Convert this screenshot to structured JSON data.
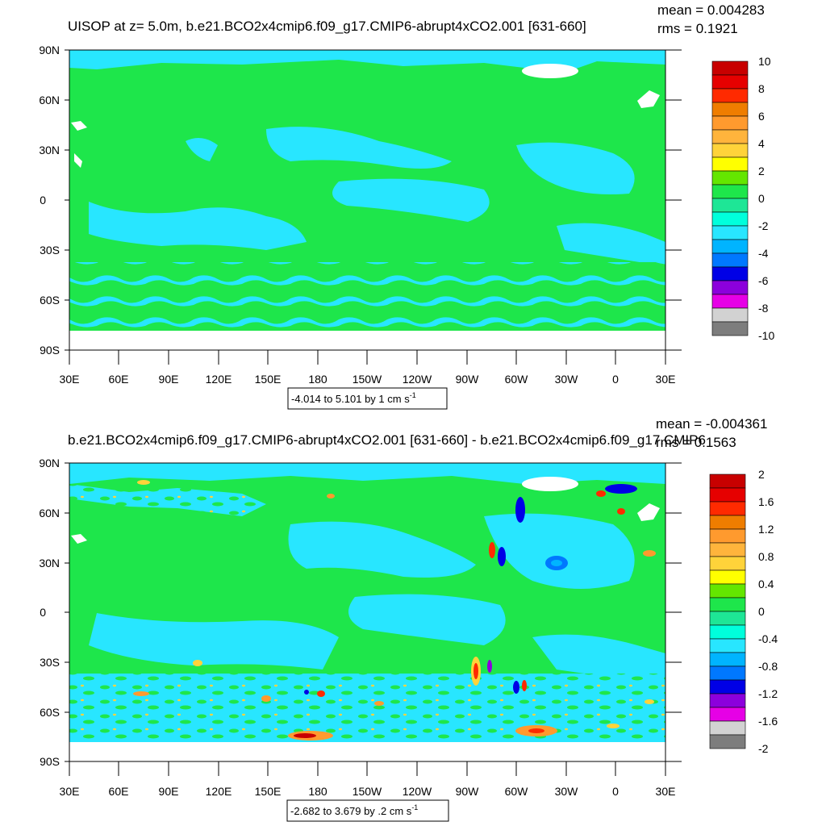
{
  "panels": [
    {
      "title": "UISOP at z=   5.0m, b.e21.BCO2x4cmip6.f09_g17.CMIP6-abrupt4xCO2.001 [631-660]",
      "mean_text": "mean = 0.004283",
      "rms_text": "rms = 0.1921",
      "range_text": "-4.014 to 5.101 by 1 cm s",
      "range_sup": "-1",
      "lat_labels": [
        "90N",
        "60N",
        "30N",
        "0",
        "30S",
        "60S",
        "90S"
      ],
      "lon_labels": [
        "30E",
        "60E",
        "90E",
        "120E",
        "150E",
        "180",
        "150W",
        "120W",
        "90W",
        "60W",
        "30W",
        "0",
        "30E"
      ],
      "colorbar_labels": [
        "10",
        "8",
        "6",
        "4",
        "2",
        "0",
        "-2",
        "-4",
        "-6",
        "-8",
        "-10"
      ]
    },
    {
      "title": "b.e21.BCO2x4cmip6.f09_g17.CMIP6-abrupt4xCO2.001 [631-660] - b.e21.BCO2x4cmip6.f09_g17.CMIP6",
      "mean_text": "mean = -0.004361",
      "rms_text": "rms = 0.1563",
      "range_text": "-2.682 to 3.679 by .2 cm s",
      "range_sup": "-1",
      "lat_labels": [
        "90N",
        "60N",
        "30N",
        "0",
        "30S",
        "60S",
        "90S"
      ],
      "lon_labels": [
        "30E",
        "60E",
        "90E",
        "120E",
        "150E",
        "180",
        "150W",
        "120W",
        "90W",
        "60W",
        "30W",
        "0",
        "30E"
      ],
      "colorbar_labels": [
        "2",
        "1.6",
        "1.2",
        "0.8",
        "0.4",
        "0",
        "-0.4",
        "-0.8",
        "-1.2",
        "-1.6",
        "-2"
      ]
    }
  ],
  "colorbar_colors": [
    "#c80000",
    "#e60000",
    "#ff2a00",
    "#ef7d00",
    "#ff9a2e",
    "#ffb43c",
    "#ffd33a",
    "#ffff00",
    "#64e600",
    "#1ee64b",
    "#1ee696",
    "#00ffdc",
    "#28e6ff",
    "#00b4ff",
    "#0078ff",
    "#0000e6",
    "#8c00dc",
    "#e600e6",
    "#d2d2d2",
    "#7d7d7d"
  ],
  "map_colors": {
    "zero_band": "#1ee64b",
    "neg_small": "#28e6ff",
    "neg_light": "#00ffdc",
    "no_data": "#ffffff"
  },
  "chart_data": [
    {
      "type": "heatmap",
      "title": "UISOP at z=   5.0m, b.e21.BCO2x4cmip6.f09_g17.CMIP6-abrupt4xCO2.001 [631-660]",
      "variable": "UISOP",
      "depth_m": 5.0,
      "stats": {
        "mean": 0.004283,
        "rms": 0.1921
      },
      "contour": {
        "min": -4.014,
        "max": 5.101,
        "interval": 1,
        "units": "cm s-1"
      },
      "colorbar": {
        "min": -10,
        "max": 10,
        "labels": [
          10,
          8,
          6,
          4,
          2,
          0,
          -2,
          -4,
          -6,
          -8,
          -10
        ]
      },
      "xlim": [
        "30E",
        "30E"
      ],
      "ylim": [
        "90S",
        "90N"
      ]
    },
    {
      "type": "heatmap",
      "title": "b.e21.BCO2x4cmip6.f09_g17.CMIP6-abrupt4xCO2.001 [631-660] - b.e21.BCO2x4cmip6.f09_g17.CMIP6",
      "stats": {
        "mean": -0.004361,
        "rms": 0.1563
      },
      "contour": {
        "min": -2.682,
        "max": 3.679,
        "interval": 0.2,
        "units": "cm s-1"
      },
      "colorbar": {
        "min": -2,
        "max": 2,
        "labels": [
          2,
          1.6,
          1.2,
          0.8,
          0.4,
          0,
          -0.4,
          -0.8,
          -1.2,
          -1.6,
          -2
        ]
      },
      "xlim": [
        "30E",
        "30E"
      ],
      "ylim": [
        "90S",
        "90N"
      ]
    }
  ]
}
